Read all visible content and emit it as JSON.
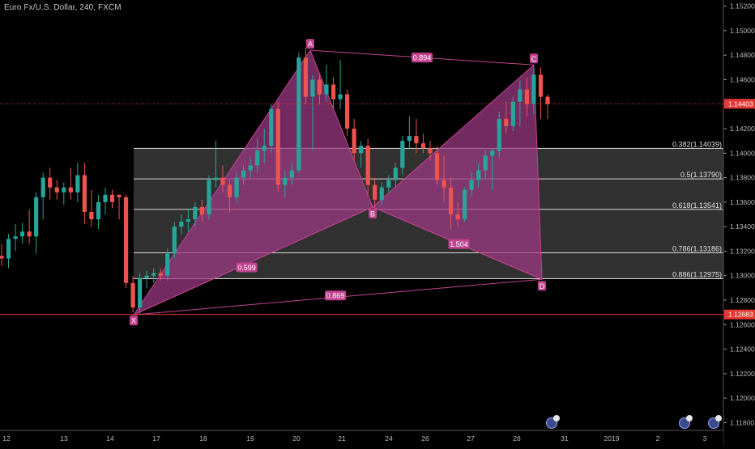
{
  "chart": {
    "title": "Euro Fx/U.S. Dollar, 240, FXCM",
    "x_labels": [
      "12",
      "13",
      "14",
      "17",
      "18",
      "19",
      "20",
      "21",
      "24",
      "26",
      "27",
      "28",
      "31",
      "2019",
      "2",
      "3"
    ],
    "price_ticks": [
      "1.15200",
      "1.15000",
      "1.14800",
      "1.14600",
      "1.14400",
      "1.14200",
      "1.14000",
      "1.13800",
      "1.13600",
      "1.13400",
      "1.13200",
      "1.13000",
      "1.12800",
      "1.12600",
      "1.12400",
      "1.12200",
      "1.12000",
      "1.11800"
    ],
    "current_price": "1.14403",
    "x_level_price": "1.12683",
    "colors": {
      "up": "#26a69a",
      "down": "#ef5350",
      "pattern": "#c2428f",
      "pattern_fill": "#a03a86",
      "fib_fill": "#3a3a3a",
      "fib_line": "#d8d8d8",
      "price_tag": "#e53935"
    }
  },
  "pattern": {
    "points": {
      "X": "X",
      "A": "A",
      "B": "B",
      "C": "C",
      "D": "D"
    },
    "ratios": {
      "xb": "0.599",
      "ac": "0.894",
      "bd": "1.504",
      "xd": "0.869"
    }
  },
  "fib_levels": [
    {
      "label": "0.382(1.14039)",
      "price": 1.14039
    },
    {
      "label": "0.5(1.13790)",
      "price": 1.1379
    },
    {
      "label": "0.618(1.13541)",
      "price": 1.13541
    },
    {
      "label": "0.786(1.13186)",
      "price": 1.13186
    },
    {
      "label": "0.886(1.12975)",
      "price": 1.12975
    }
  ],
  "chart_data": {
    "type": "candlestick",
    "title": "Euro Fx/U.S. Dollar, 240, FXCM",
    "ylim": [
      1.1175,
      1.1525
    ],
    "pattern_points": [
      {
        "name": "X",
        "price": 1.1268
      },
      {
        "name": "A",
        "price": 1.1484
      },
      {
        "name": "B",
        "price": 1.1356
      },
      {
        "name": "C",
        "price": 1.1472
      },
      {
        "name": "D",
        "price": 1.1297
      }
    ],
    "candles": [
      {
        "o": 1.1316,
        "h": 1.1326,
        "l": 1.1308,
        "c": 1.1314
      },
      {
        "o": 1.1314,
        "h": 1.1334,
        "l": 1.1306,
        "c": 1.133
      },
      {
        "o": 1.133,
        "h": 1.1342,
        "l": 1.132,
        "c": 1.1332
      },
      {
        "o": 1.1332,
        "h": 1.1343,
        "l": 1.1326,
        "c": 1.1336
      },
      {
        "o": 1.1336,
        "h": 1.1354,
        "l": 1.1326,
        "c": 1.1332
      },
      {
        "o": 1.1332,
        "h": 1.1368,
        "l": 1.1318,
        "c": 1.1364
      },
      {
        "o": 1.1364,
        "h": 1.1384,
        "l": 1.1346,
        "c": 1.138
      },
      {
        "o": 1.138,
        "h": 1.1388,
        "l": 1.1362,
        "c": 1.1372
      },
      {
        "o": 1.1372,
        "h": 1.1378,
        "l": 1.1362,
        "c": 1.1368
      },
      {
        "o": 1.1368,
        "h": 1.1376,
        "l": 1.1358,
        "c": 1.1372
      },
      {
        "o": 1.1372,
        "h": 1.1388,
        "l": 1.1362,
        "c": 1.1368
      },
      {
        "o": 1.1368,
        "h": 1.1392,
        "l": 1.136,
        "c": 1.1382
      },
      {
        "o": 1.1382,
        "h": 1.1392,
        "l": 1.1342,
        "c": 1.1352
      },
      {
        "o": 1.1352,
        "h": 1.137,
        "l": 1.134,
        "c": 1.1346
      },
      {
        "o": 1.1346,
        "h": 1.1366,
        "l": 1.1338,
        "c": 1.136
      },
      {
        "o": 1.136,
        "h": 1.1372,
        "l": 1.135,
        "c": 1.1366
      },
      {
        "o": 1.1366,
        "h": 1.137,
        "l": 1.1355,
        "c": 1.136
      },
      {
        "o": 1.1366,
        "h": 1.1366,
        "l": 1.1346,
        "c": 1.1364
      },
      {
        "o": 1.1364,
        "h": 1.1366,
        "l": 1.129,
        "c": 1.1294
      },
      {
        "o": 1.1294,
        "h": 1.13,
        "l": 1.127,
        "c": 1.1274
      },
      {
        "o": 1.1274,
        "h": 1.1302,
        "l": 1.1268,
        "c": 1.1298
      },
      {
        "o": 1.1298,
        "h": 1.1304,
        "l": 1.129,
        "c": 1.13
      },
      {
        "o": 1.13,
        "h": 1.1306,
        "l": 1.1294,
        "c": 1.1302
      },
      {
        "o": 1.1302,
        "h": 1.1306,
        "l": 1.1296,
        "c": 1.13
      },
      {
        "o": 1.13,
        "h": 1.1322,
        "l": 1.1296,
        "c": 1.1318
      },
      {
        "o": 1.1318,
        "h": 1.1344,
        "l": 1.1314,
        "c": 1.134
      },
      {
        "o": 1.134,
        "h": 1.135,
        "l": 1.1334,
        "c": 1.1344
      },
      {
        "o": 1.1344,
        "h": 1.1354,
        "l": 1.1336,
        "c": 1.1346
      },
      {
        "o": 1.1346,
        "h": 1.136,
        "l": 1.134,
        "c": 1.1356
      },
      {
        "o": 1.1356,
        "h": 1.1362,
        "l": 1.1344,
        "c": 1.135
      },
      {
        "o": 1.135,
        "h": 1.1382,
        "l": 1.1346,
        "c": 1.1378
      },
      {
        "o": 1.1378,
        "h": 1.141,
        "l": 1.1372,
        "c": 1.138
      },
      {
        "o": 1.138,
        "h": 1.139,
        "l": 1.1368,
        "c": 1.1374
      },
      {
        "o": 1.1374,
        "h": 1.1378,
        "l": 1.1352,
        "c": 1.1364
      },
      {
        "o": 1.1364,
        "h": 1.1384,
        "l": 1.136,
        "c": 1.138
      },
      {
        "o": 1.138,
        "h": 1.139,
        "l": 1.1374,
        "c": 1.1386
      },
      {
        "o": 1.1386,
        "h": 1.1396,
        "l": 1.138,
        "c": 1.139
      },
      {
        "o": 1.139,
        "h": 1.1412,
        "l": 1.1384,
        "c": 1.1402
      },
      {
        "o": 1.1402,
        "h": 1.142,
        "l": 1.1392,
        "c": 1.1406
      },
      {
        "o": 1.1406,
        "h": 1.144,
        "l": 1.14,
        "c": 1.1436
      },
      {
        "o": 1.1436,
        "h": 1.1442,
        "l": 1.1368,
        "c": 1.1374
      },
      {
        "o": 1.1374,
        "h": 1.1386,
        "l": 1.1364,
        "c": 1.138
      },
      {
        "o": 1.138,
        "h": 1.1392,
        "l": 1.1374,
        "c": 1.1386
      },
      {
        "o": 1.1386,
        "h": 1.1482,
        "l": 1.1384,
        "c": 1.1478
      },
      {
        "o": 1.1478,
        "h": 1.1486,
        "l": 1.144,
        "c": 1.1446
      },
      {
        "o": 1.1446,
        "h": 1.1464,
        "l": 1.1402,
        "c": 1.146
      },
      {
        "o": 1.146,
        "h": 1.1464,
        "l": 1.144,
        "c": 1.1448
      },
      {
        "o": 1.1448,
        "h": 1.1472,
        "l": 1.1442,
        "c": 1.1456
      },
      {
        "o": 1.1456,
        "h": 1.1462,
        "l": 1.1436,
        "c": 1.1444
      },
      {
        "o": 1.1444,
        "h": 1.1476,
        "l": 1.1436,
        "c": 1.1448
      },
      {
        "o": 1.1448,
        "h": 1.1452,
        "l": 1.1414,
        "c": 1.142
      },
      {
        "o": 1.142,
        "h": 1.1428,
        "l": 1.1394,
        "c": 1.14
      },
      {
        "o": 1.14,
        "h": 1.141,
        "l": 1.1388,
        "c": 1.1406
      },
      {
        "o": 1.1406,
        "h": 1.1412,
        "l": 1.1366,
        "c": 1.1374
      },
      {
        "o": 1.1374,
        "h": 1.138,
        "l": 1.1356,
        "c": 1.1362
      },
      {
        "o": 1.1362,
        "h": 1.1376,
        "l": 1.1358,
        "c": 1.1372
      },
      {
        "o": 1.1372,
        "h": 1.1382,
        "l": 1.1368,
        "c": 1.1378
      },
      {
        "o": 1.1378,
        "h": 1.1392,
        "l": 1.1372,
        "c": 1.1388
      },
      {
        "o": 1.1388,
        "h": 1.1414,
        "l": 1.1382,
        "c": 1.141
      },
      {
        "o": 1.141,
        "h": 1.143,
        "l": 1.1404,
        "c": 1.1414
      },
      {
        "o": 1.1414,
        "h": 1.1428,
        "l": 1.14,
        "c": 1.1408
      },
      {
        "o": 1.1408,
        "h": 1.1416,
        "l": 1.14,
        "c": 1.1404
      },
      {
        "o": 1.1404,
        "h": 1.141,
        "l": 1.1394,
        "c": 1.14
      },
      {
        "o": 1.14,
        "h": 1.1406,
        "l": 1.1374,
        "c": 1.1378
      },
      {
        "o": 1.1378,
        "h": 1.1398,
        "l": 1.136,
        "c": 1.1372
      },
      {
        "o": 1.1372,
        "h": 1.138,
        "l": 1.1338,
        "c": 1.135
      },
      {
        "o": 1.135,
        "h": 1.136,
        "l": 1.134,
        "c": 1.1346
      },
      {
        "o": 1.1346,
        "h": 1.1372,
        "l": 1.1344,
        "c": 1.137
      },
      {
        "o": 1.137,
        "h": 1.1384,
        "l": 1.1364,
        "c": 1.1378
      },
      {
        "o": 1.1378,
        "h": 1.1392,
        "l": 1.1372,
        "c": 1.1386
      },
      {
        "o": 1.1386,
        "h": 1.1402,
        "l": 1.1378,
        "c": 1.1398
      },
      {
        "o": 1.1398,
        "h": 1.1404,
        "l": 1.137,
        "c": 1.1402
      },
      {
        "o": 1.1402,
        "h": 1.1434,
        "l": 1.1396,
        "c": 1.1428
      },
      {
        "o": 1.1428,
        "h": 1.1442,
        "l": 1.1416,
        "c": 1.1422
      },
      {
        "o": 1.1422,
        "h": 1.1446,
        "l": 1.1418,
        "c": 1.1442
      },
      {
        "o": 1.1442,
        "h": 1.146,
        "l": 1.1422,
        "c": 1.1452
      },
      {
        "o": 1.1452,
        "h": 1.1462,
        "l": 1.143,
        "c": 1.144
      },
      {
        "o": 1.144,
        "h": 1.147,
        "l": 1.1432,
        "c": 1.1464
      },
      {
        "o": 1.1464,
        "h": 1.147,
        "l": 1.1428,
        "c": 1.1446
      },
      {
        "o": 1.1446,
        "h": 1.1448,
        "l": 1.1428,
        "c": 1.144
      }
    ]
  }
}
